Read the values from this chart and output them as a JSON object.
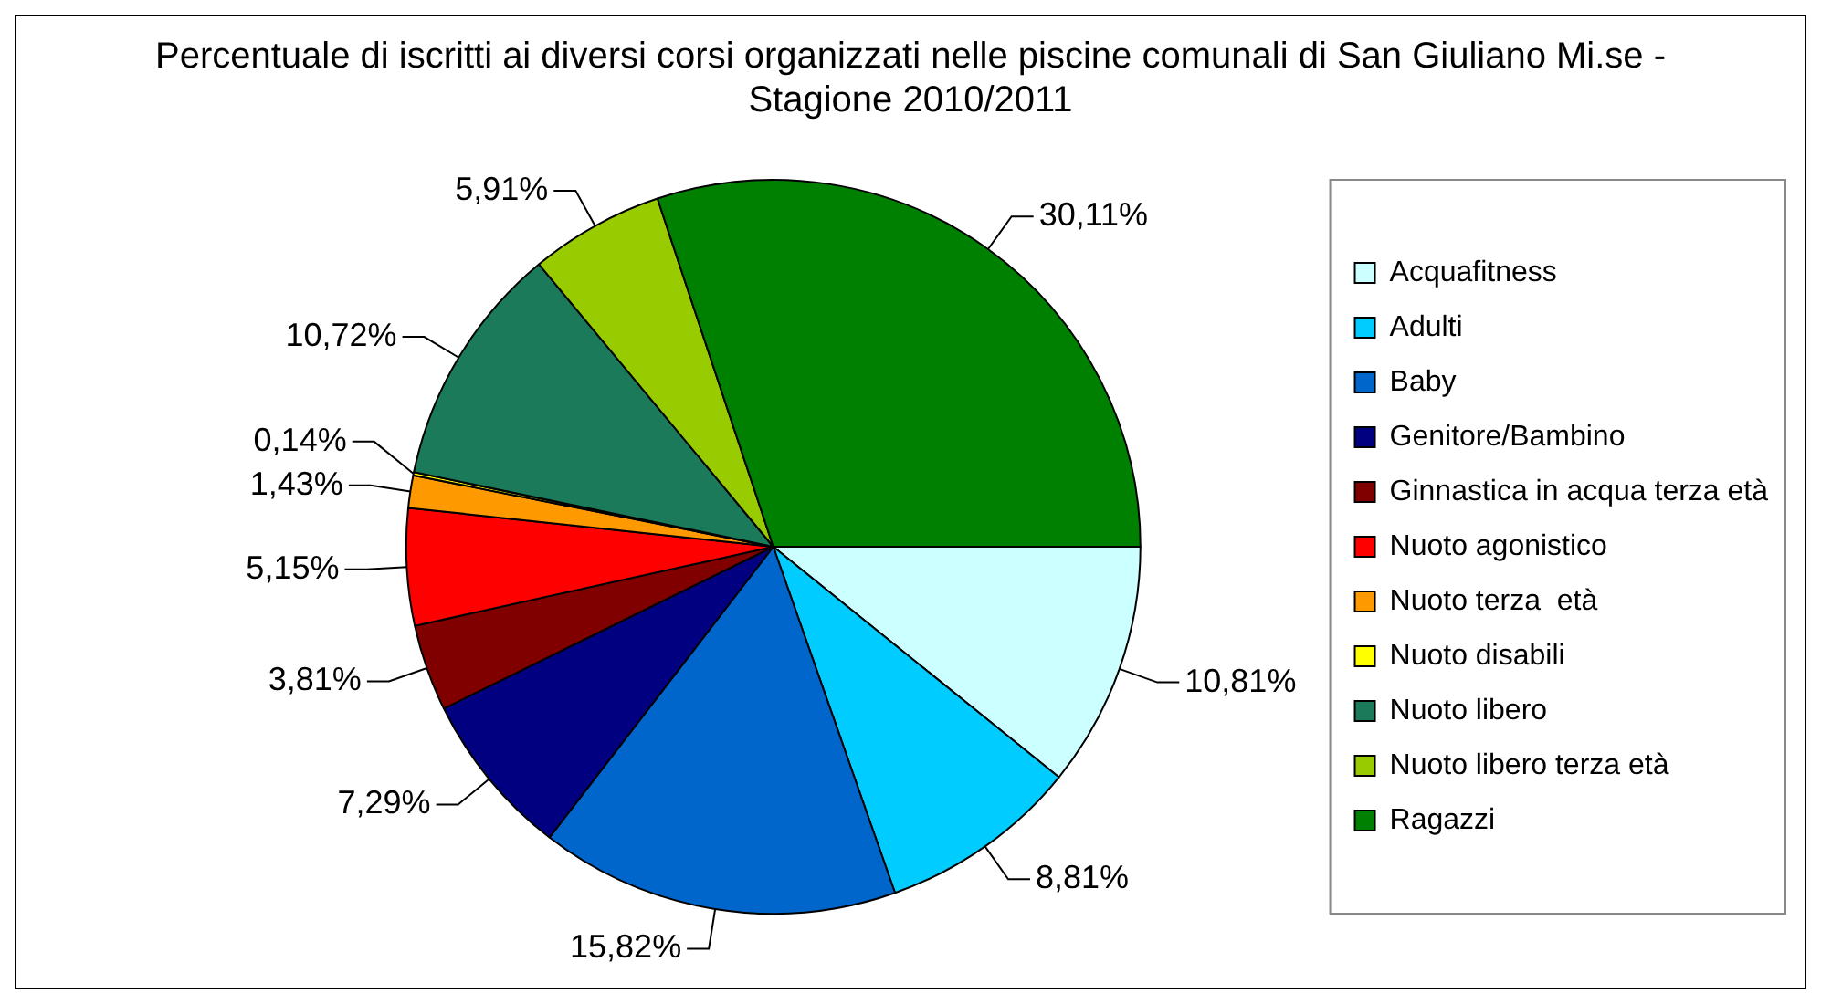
{
  "chart_data": {
    "type": "pie",
    "title": "Percentuale di iscritti ai diversi corsi organizzati nelle piscine comunali di San Giuliano Mi.se - Stagione 2010/2011",
    "categories": [
      "Acquafitness",
      "Adulti",
      "Baby",
      "Genitore/Bambino",
      "Ginnastica in acqua terza età",
      "Nuoto agonistico",
      "Nuoto terza  età",
      "Nuoto disabili",
      "Nuoto libero",
      "Nuoto libero terza età",
      "Ragazzi"
    ],
    "values": [
      10.81,
      8.81,
      15.82,
      7.29,
      3.81,
      5.15,
      1.43,
      0.14,
      10.72,
      5.91,
      30.11
    ],
    "value_labels": [
      "10,81%",
      "8,81%",
      "15,82%",
      "7,29%",
      "3,81%",
      "5,15%",
      "1,43%",
      "0,14%",
      "10,72%",
      "5,91%",
      "30,11%"
    ],
    "colors": [
      "#ccffff",
      "#00ccff",
      "#0066cc",
      "#000080",
      "#800000",
      "#ff0000",
      "#ff9900",
      "#ffff00",
      "#1a7a5a",
      "#99cc00",
      "#008000"
    ],
    "legend": "right"
  }
}
